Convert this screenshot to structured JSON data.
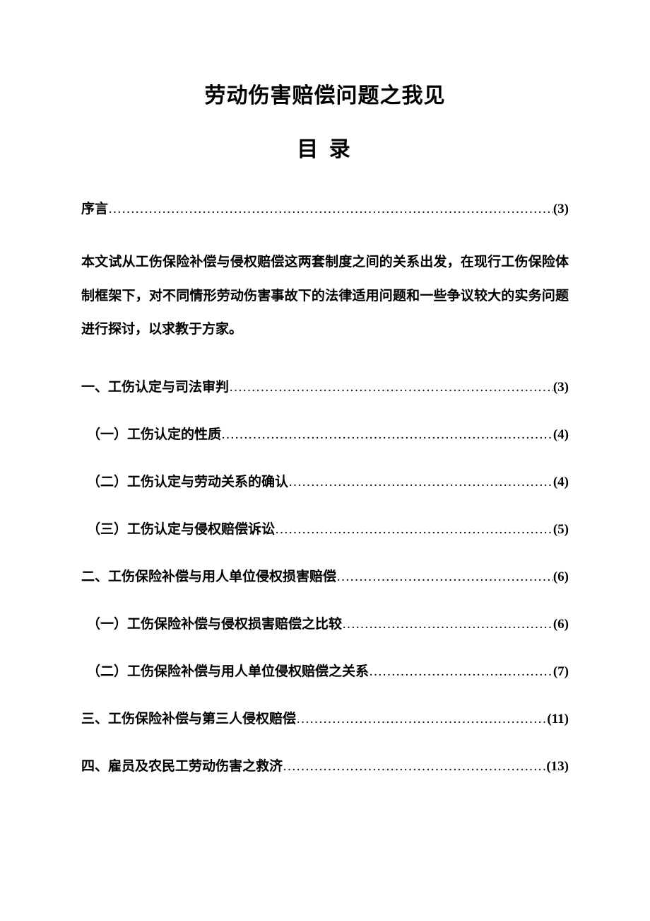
{
  "title": "劳动伤害赔偿问题之我见",
  "subtitle": "目 录",
  "preface": {
    "label": "序言",
    "page": "(3)"
  },
  "abstract": "本文试从工伤保险补偿与侵权赔偿这两套制度之间的关系出发，在现行工伤保险体制框架下，对不同情形劳动伤害事故下的法律适用问题和一些争议较大的实务问题进行探讨，以求教于方家。",
  "toc": [
    {
      "label": "一、工伤认定与司法审判",
      "page": "(3)",
      "level": 0
    },
    {
      "label": "（一）工伤认定的性质",
      "page": "(4)",
      "level": 1
    },
    {
      "label": "（二）工伤认定与劳动关系的确认",
      "page": "(4)",
      "level": 1
    },
    {
      "label": "（三）工伤认定与侵权赔偿诉讼",
      "page": "(5)",
      "level": 1
    },
    {
      "label": "二、工伤保险补偿与用人单位侵权损害赔偿",
      "page": "(6)",
      "level": 0
    },
    {
      "label": "（一）工伤保险补偿与侵权损害赔偿之比较",
      "page": "(6)",
      "level": 1
    },
    {
      "label": "（二）工伤保险补偿与用人单位侵权赔偿之关系",
      "page": "(7)",
      "level": 1
    },
    {
      "label": "三、工伤保险补偿与第三人侵权赔偿",
      "page": "(11)",
      "level": 0
    },
    {
      "label": "四、雇员及农民工劳动伤害之救济",
      "page": "(13)",
      "level": 0
    }
  ],
  "dots": "…………………………………………………………………………………………"
}
